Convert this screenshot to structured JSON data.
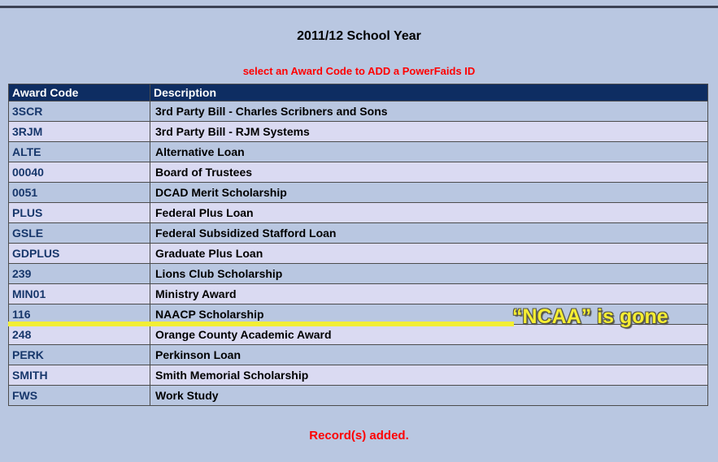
{
  "page": {
    "title": "2011/12 School Year",
    "subtitle": "select an Award Code to ADD a PowerFaids ID",
    "status_message": "Record(s) added."
  },
  "table": {
    "columns": [
      {
        "label": "Award Code"
      },
      {
        "label": "Description"
      }
    ],
    "rows": [
      {
        "code": "3SCR",
        "description": "3rd Party Bill - Charles Scribners and Sons"
      },
      {
        "code": "3RJM",
        "description": "3rd Party Bill - RJM Systems"
      },
      {
        "code": "ALTE",
        "description": "Alternative Loan"
      },
      {
        "code": "00040",
        "description": "Board of Trustees"
      },
      {
        "code": "0051",
        "description": "DCAD Merit Scholarship"
      },
      {
        "code": "PLUS",
        "description": "Federal Plus Loan"
      },
      {
        "code": "GSLE",
        "description": "Federal Subsidized Stafford Loan"
      },
      {
        "code": "GDPLUS",
        "description": "Graduate Plus Loan"
      },
      {
        "code": "239",
        "description": "Lions Club Scholarship"
      },
      {
        "code": "MIN01",
        "description": "Ministry Award"
      },
      {
        "code": "116",
        "description": "NAACP Scholarship"
      },
      {
        "code": "248",
        "description": "Orange County Academic Award"
      },
      {
        "code": "PERK",
        "description": "Perkinson Loan"
      },
      {
        "code": "SMITH",
        "description": "Smith Memorial Scholarship"
      },
      {
        "code": "FWS",
        "description": "Work Study"
      }
    ]
  },
  "annotation": {
    "text": "“NCAA” is gone",
    "highlight_after_code": "116",
    "highlight_color": "#f2ee35",
    "text_color": "#f5ed32",
    "outline_color": "#55554a"
  },
  "colors": {
    "page_background": "#b9c7e1",
    "header_background": "#0e2d62",
    "header_text": "#ffffff",
    "row_background": "#b9c7e1",
    "row_alt_background": "#dadaf2",
    "award_code_text": "#17376b",
    "description_text": "#000000",
    "subtitle_text": "#ff0000",
    "status_text": "#ff0000",
    "row_border": "#4c4c4c",
    "top_rule": "#3c4254"
  }
}
